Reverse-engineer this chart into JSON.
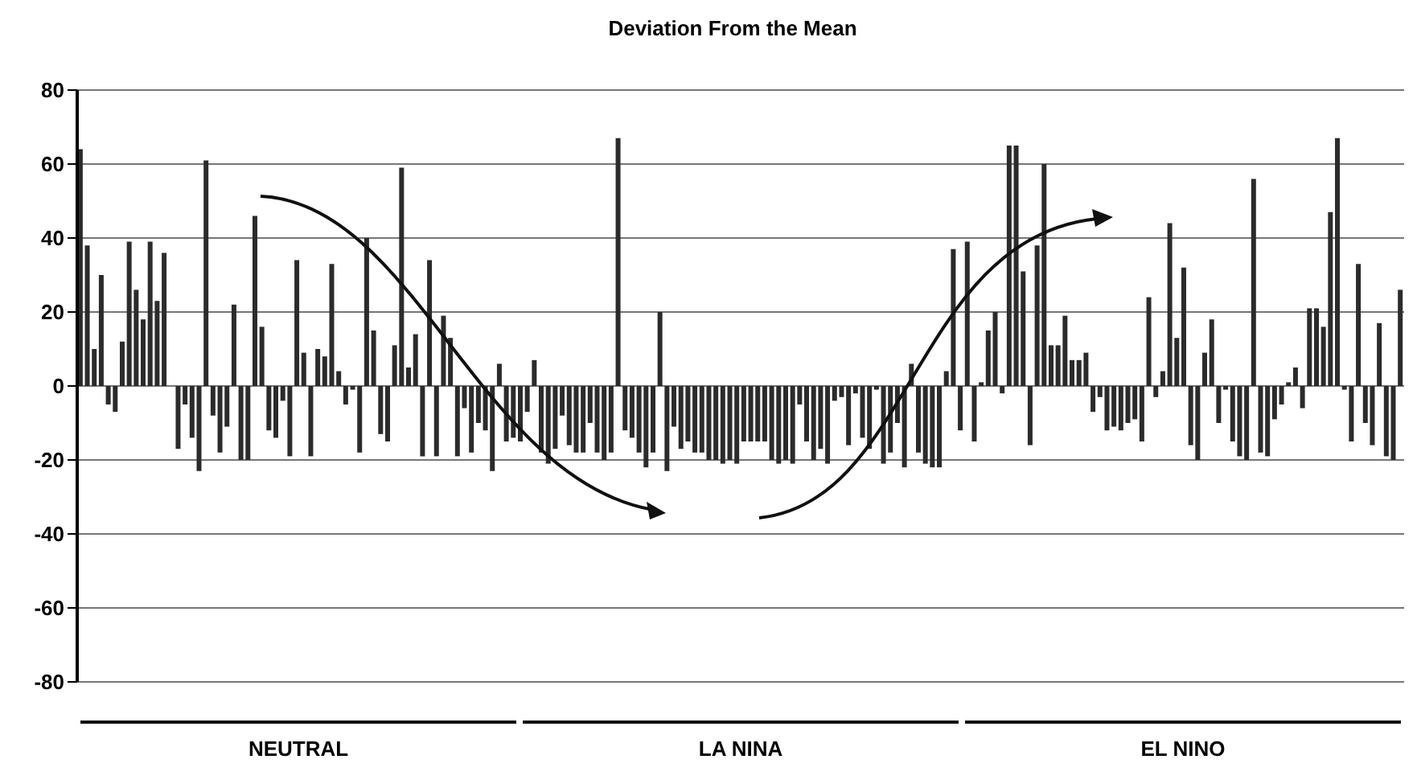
{
  "chart_data": {
    "type": "bar",
    "title": "Deviation From the Mean",
    "categories": [
      null,
      null,
      null,
      null,
      null,
      null,
      null,
      null,
      null,
      null,
      null,
      null,
      null,
      null,
      null,
      null,
      null,
      null,
      null,
      null,
      null,
      null,
      null,
      null,
      null,
      null,
      null,
      null,
      null,
      null,
      null,
      null,
      null,
      null,
      null,
      null,
      null,
      null,
      null,
      null,
      null,
      null,
      null,
      null,
      null,
      null,
      null,
      null,
      null,
      null,
      null,
      null,
      null,
      null,
      null,
      null,
      null,
      null,
      null,
      null,
      null,
      null,
      null,
      null,
      null,
      null,
      null,
      null,
      null,
      null,
      null,
      null,
      null,
      null,
      null,
      null,
      null,
      null,
      null,
      null,
      null,
      null,
      null,
      null,
      null,
      null,
      null,
      null,
      null,
      null,
      null,
      null,
      null,
      null,
      null,
      null,
      null,
      null,
      null,
      null,
      null,
      null,
      null,
      null,
      null,
      null,
      null,
      null,
      null,
      null,
      null,
      null,
      null,
      null,
      null,
      null,
      null,
      null,
      null,
      null,
      null,
      null,
      null,
      null,
      null,
      null,
      null,
      null,
      null,
      null,
      null,
      null,
      null,
      null,
      null,
      null,
      null,
      null,
      null,
      null,
      null,
      null,
      null,
      null,
      null,
      null,
      null,
      null,
      null,
      null,
      null,
      null,
      null,
      null,
      null,
      null,
      null,
      null,
      null,
      null,
      null,
      null,
      null,
      null,
      null,
      null,
      null,
      null,
      null,
      null,
      null,
      null,
      null,
      null,
      null,
      null,
      null,
      null,
      null,
      null,
      null,
      null,
      null,
      null,
      null,
      null,
      null,
      null,
      null,
      null
    ],
    "values": [
      64,
      38,
      10,
      30,
      -5,
      -7,
      12,
      39,
      26,
      18,
      39,
      23,
      36,
      0,
      -17,
      -5,
      -14,
      -23,
      61,
      -8,
      -18,
      -11,
      22,
      -20,
      -20,
      46,
      16,
      -12,
      -14,
      -4,
      -19,
      34,
      9,
      -19,
      10,
      8,
      33,
      4,
      -5,
      -1,
      -18,
      40,
      15,
      -13,
      -15,
      11,
      59,
      5,
      14,
      -19,
      34,
      -19,
      19,
      13,
      -19,
      -6,
      -18,
      -10,
      -12,
      -23,
      6,
      -15,
      -14,
      -15,
      -7,
      7,
      -18,
      -21,
      -17,
      -8,
      -16,
      -18,
      -18,
      -10,
      -18,
      -20,
      -18,
      67,
      -12,
      -14,
      -18,
      -22,
      -18,
      20,
      -23,
      -11,
      -17,
      -15,
      -18,
      -18,
      -20,
      -20,
      -21,
      -20,
      -21,
      -15,
      -15,
      -15,
      -15,
      -20,
      -21,
      -20,
      -21,
      -5,
      -15,
      -20,
      -17,
      -21,
      -4,
      -3,
      -16,
      -2,
      -14,
      -17,
      -1,
      -21,
      -18,
      -10,
      -22,
      6,
      -18,
      -21,
      -22,
      -22,
      4,
      37,
      -12,
      39,
      -15,
      1,
      15,
      20,
      -2,
      65,
      65,
      31,
      -16,
      38,
      60,
      11,
      11,
      19,
      7,
      7,
      9,
      -7,
      -3,
      -12,
      -11,
      -12,
      -10,
      -9,
      -15,
      24,
      -3,
      4,
      44,
      13,
      32,
      -16,
      -20,
      9,
      18,
      -10,
      -1,
      -15,
      -19,
      -20,
      56,
      -18,
      -19,
      -9,
      -5,
      1,
      5,
      -6,
      21,
      21,
      16,
      47,
      67,
      -1,
      -15,
      33,
      -10,
      -16,
      17,
      -19,
      -20,
      26
    ],
    "color": "#2b2b2b",
    "ylim": [
      -80,
      80
    ],
    "yticks": [
      -80,
      -60,
      -40,
      -20,
      0,
      20,
      40,
      60,
      80
    ],
    "grid": "y",
    "tick_labels": "y",
    "annotations": [
      "NEUTRAL",
      "LA NINA",
      "EL NINO"
    ]
  }
}
